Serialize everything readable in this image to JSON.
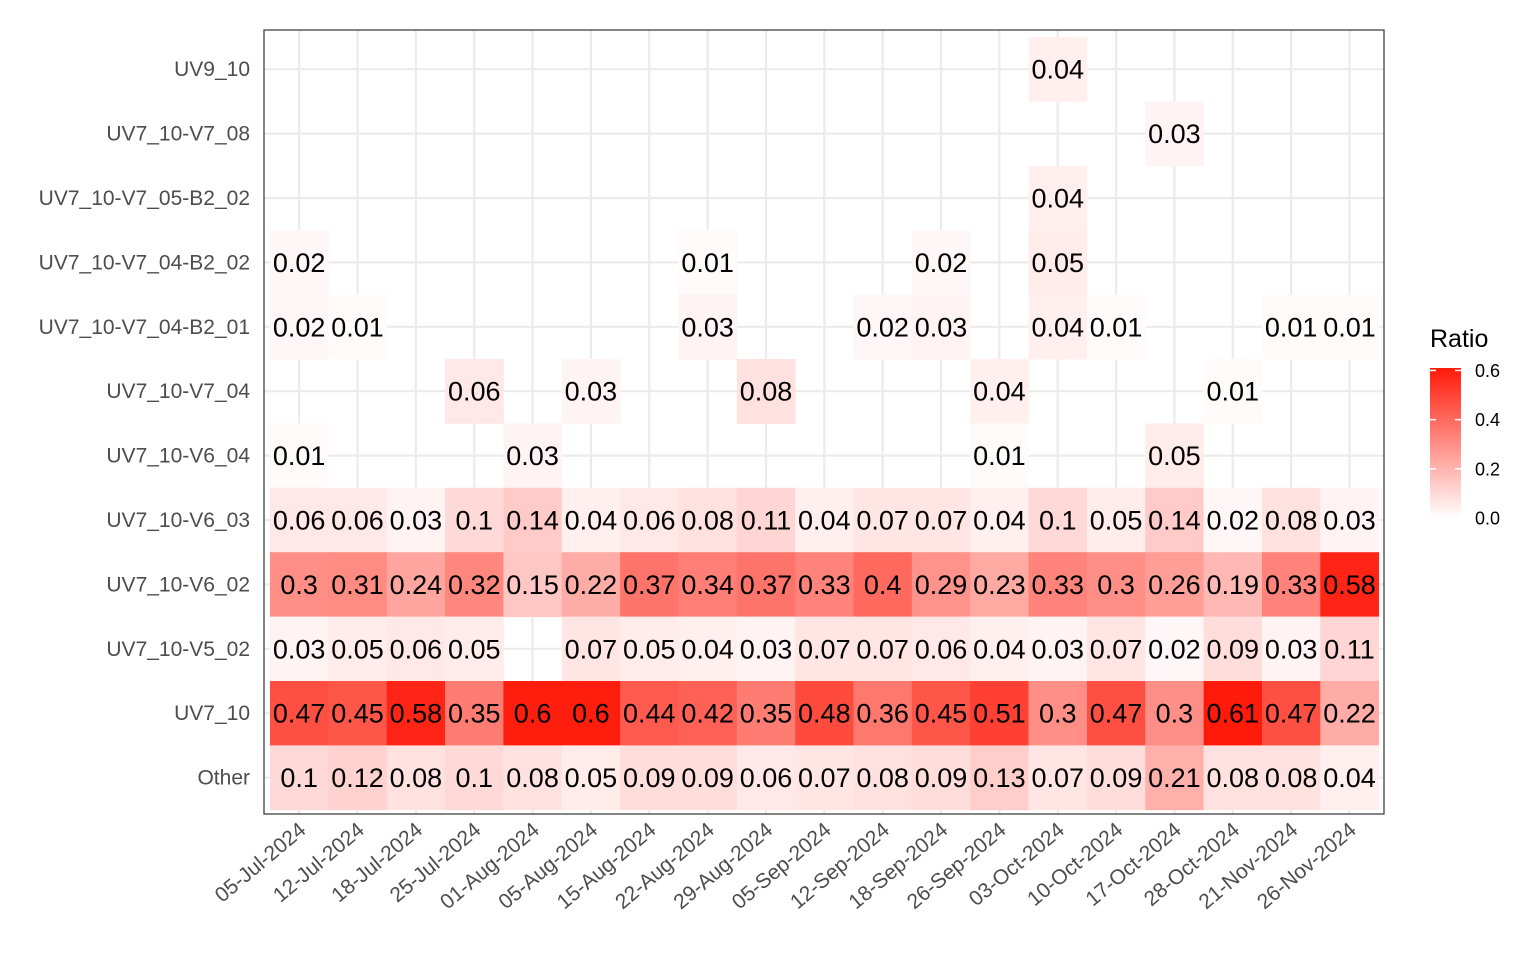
{
  "chart_data": {
    "type": "heatmap",
    "title": "",
    "xlabel": "",
    "ylabel": "",
    "x_categories": [
      "05-Jul-2024",
      "12-Jul-2024",
      "18-Jul-2024",
      "25-Jul-2024",
      "01-Aug-2024",
      "05-Aug-2024",
      "15-Aug-2024",
      "22-Aug-2024",
      "29-Aug-2024",
      "05-Sep-2024",
      "12-Sep-2024",
      "18-Sep-2024",
      "26-Sep-2024",
      "03-Oct-2024",
      "10-Oct-2024",
      "17-Oct-2024",
      "28-Oct-2024",
      "21-Nov-2024",
      "26-Nov-2024"
    ],
    "y_categories": [
      "UV9_10",
      "UV7_10-V7_08",
      "UV7_10-V7_05-B2_02",
      "UV7_10-V7_04-B2_02",
      "UV7_10-V7_04-B2_01",
      "UV7_10-V7_04",
      "UV7_10-V6_04",
      "UV7_10-V6_03",
      "UV7_10-V6_02",
      "UV7_10-V5_02",
      "UV7_10",
      "Other"
    ],
    "values": [
      [
        null,
        null,
        null,
        null,
        null,
        null,
        null,
        null,
        null,
        null,
        null,
        null,
        null,
        0.04,
        null,
        null,
        null,
        null,
        null
      ],
      [
        null,
        null,
        null,
        null,
        null,
        null,
        null,
        null,
        null,
        null,
        null,
        null,
        null,
        null,
        null,
        0.03,
        null,
        null,
        null
      ],
      [
        null,
        null,
        null,
        null,
        null,
        null,
        null,
        null,
        null,
        null,
        null,
        null,
        null,
        0.04,
        null,
        null,
        null,
        null,
        null
      ],
      [
        0.02,
        null,
        null,
        null,
        null,
        null,
        null,
        0.01,
        null,
        null,
        null,
        0.02,
        null,
        0.05,
        null,
        null,
        null,
        null,
        null
      ],
      [
        0.02,
        0.01,
        null,
        null,
        null,
        null,
        null,
        0.03,
        null,
        null,
        0.02,
        0.03,
        null,
        0.04,
        0.01,
        null,
        null,
        0.01,
        0.01
      ],
      [
        null,
        null,
        null,
        0.06,
        null,
        0.03,
        null,
        null,
        0.08,
        null,
        null,
        null,
        0.04,
        null,
        null,
        null,
        0.01,
        null,
        null
      ],
      [
        0.01,
        null,
        null,
        null,
        0.03,
        null,
        null,
        null,
        null,
        null,
        null,
        null,
        0.01,
        null,
        null,
        0.05,
        null,
        null,
        null
      ],
      [
        0.06,
        0.06,
        0.03,
        0.1,
        0.14,
        0.04,
        0.06,
        0.08,
        0.11,
        0.04,
        0.07,
        0.07,
        0.04,
        0.1,
        0.05,
        0.14,
        0.02,
        0.08,
        0.03
      ],
      [
        0.3,
        0.31,
        0.24,
        0.32,
        0.15,
        0.22,
        0.37,
        0.34,
        0.37,
        0.33,
        0.4,
        0.29,
        0.23,
        0.33,
        0.3,
        0.26,
        0.19,
        0.33,
        0.58
      ],
      [
        0.03,
        0.05,
        0.06,
        0.05,
        null,
        0.07,
        0.05,
        0.04,
        0.03,
        0.07,
        0.07,
        0.06,
        0.04,
        0.03,
        0.07,
        0.02,
        0.09,
        0.03,
        0.11
      ],
      [
        0.47,
        0.45,
        0.58,
        0.35,
        0.6,
        0.6,
        0.44,
        0.42,
        0.35,
        0.48,
        0.36,
        0.45,
        0.51,
        0.3,
        0.47,
        0.3,
        0.61,
        0.47,
        0.22
      ],
      [
        0.1,
        0.12,
        0.08,
        0.1,
        0.08,
        0.05,
        0.09,
        0.09,
        0.06,
        0.07,
        0.08,
        0.09,
        0.13,
        0.07,
        0.09,
        0.21,
        0.08,
        0.08,
        0.04
      ]
    ],
    "legend": {
      "title": "Ratio",
      "ticks": [
        0.0,
        0.2,
        0.4,
        0.6
      ],
      "tick_labels": [
        "0.0",
        "0.2",
        "0.4",
        "0.6"
      ],
      "range": [
        0,
        0.61
      ],
      "placement": "right",
      "low_color": "#ffffff",
      "high_color": "#ff1a0a"
    },
    "grid": true
  }
}
